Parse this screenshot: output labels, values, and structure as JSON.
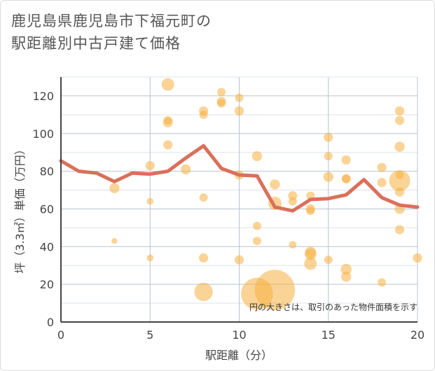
{
  "title": {
    "line1": "鹿児島県鹿児島市下福元町の",
    "line2": "駅距離別中古戸建て価格"
  },
  "colors": {
    "bubble": "#f5b041",
    "line": "#d9705a",
    "grid_major": "#b8c4d0",
    "grid_minor": "#dde3ea",
    "axis": "#444444"
  },
  "chart_data": {
    "type": "scatter",
    "xlabel": "駅距離（分）",
    "ylabel": "坪（3.3㎡）単価（万円）",
    "xlim": [
      0,
      20
    ],
    "ylim": [
      0,
      130
    ],
    "x_ticks": [
      "0",
      "5",
      "10",
      "15",
      "20"
    ],
    "y_ticks": [
      "0",
      "20",
      "40",
      "60",
      "80",
      "100",
      "120"
    ],
    "annotation": "円の大きさは、取引のあった物件面積を示す",
    "trend": [
      {
        "x": 0,
        "y": 85.5
      },
      {
        "x": 1,
        "y": 80
      },
      {
        "x": 2,
        "y": 79
      },
      {
        "x": 3,
        "y": 74.5
      },
      {
        "x": 4,
        "y": 79
      },
      {
        "x": 5,
        "y": 78.5
      },
      {
        "x": 6,
        "y": 80
      },
      {
        "x": 7,
        "y": 87
      },
      {
        "x": 8,
        "y": 93.5
      },
      {
        "x": 9,
        "y": 81.5
      },
      {
        "x": 10,
        "y": 78
      },
      {
        "x": 11,
        "y": 77.5
      },
      {
        "x": 12,
        "y": 61
      },
      {
        "x": 13,
        "y": 59
      },
      {
        "x": 14,
        "y": 65
      },
      {
        "x": 15,
        "y": 65.5
      },
      {
        "x": 16,
        "y": 67.5
      },
      {
        "x": 17,
        "y": 75.5
      },
      {
        "x": 18,
        "y": 66
      },
      {
        "x": 19,
        "y": 62
      },
      {
        "x": 20,
        "y": 61
      }
    ],
    "points": [
      {
        "x": 3,
        "y": 71,
        "size": 1.2
      },
      {
        "x": 3,
        "y": 43,
        "size": 0.7
      },
      {
        "x": 5,
        "y": 83,
        "size": 1.1
      },
      {
        "x": 5,
        "y": 64,
        "size": 0.8
      },
      {
        "x": 5,
        "y": 34,
        "size": 0.8
      },
      {
        "x": 6,
        "y": 126,
        "size": 1.5
      },
      {
        "x": 6,
        "y": 107,
        "size": 1.0
      },
      {
        "x": 6,
        "y": 106,
        "size": 1.2
      },
      {
        "x": 6,
        "y": 94,
        "size": 1.1
      },
      {
        "x": 7,
        "y": 81,
        "size": 1.2
      },
      {
        "x": 8,
        "y": 112,
        "size": 1.1
      },
      {
        "x": 8,
        "y": 110,
        "size": 1.0
      },
      {
        "x": 8,
        "y": 66,
        "size": 1.0
      },
      {
        "x": 8,
        "y": 34,
        "size": 1.1
      },
      {
        "x": 8,
        "y": 16,
        "size": 2.2
      },
      {
        "x": 9,
        "y": 122,
        "size": 1.0
      },
      {
        "x": 9,
        "y": 117,
        "size": 1.1
      },
      {
        "x": 9,
        "y": 116,
        "size": 1.0
      },
      {
        "x": 10,
        "y": 119,
        "size": 1.0
      },
      {
        "x": 10,
        "y": 112,
        "size": 1.1
      },
      {
        "x": 10,
        "y": 78,
        "size": 1.1
      },
      {
        "x": 10,
        "y": 33,
        "size": 1.1
      },
      {
        "x": 11,
        "y": 88,
        "size": 1.2
      },
      {
        "x": 11,
        "y": 51,
        "size": 1.0
      },
      {
        "x": 11,
        "y": 43,
        "size": 1.0
      },
      {
        "x": 11,
        "y": 15,
        "size": 3.8
      },
      {
        "x": 12,
        "y": 73,
        "size": 1.2
      },
      {
        "x": 12,
        "y": 63,
        "size": 1.6
      },
      {
        "x": 12,
        "y": 17,
        "size": 4.8
      },
      {
        "x": 13,
        "y": 67,
        "size": 1.1
      },
      {
        "x": 13,
        "y": 64,
        "size": 1.0
      },
      {
        "x": 13,
        "y": 41,
        "size": 0.9
      },
      {
        "x": 14,
        "y": 67,
        "size": 1.0
      },
      {
        "x": 14,
        "y": 60,
        "size": 1.1
      },
      {
        "x": 14,
        "y": 59,
        "size": 1.0
      },
      {
        "x": 14,
        "y": 37,
        "size": 1.3
      },
      {
        "x": 14,
        "y": 36,
        "size": 1.4
      },
      {
        "x": 14,
        "y": 31,
        "size": 1.5
      },
      {
        "x": 15,
        "y": 98,
        "size": 1.1
      },
      {
        "x": 15,
        "y": 88,
        "size": 1.0
      },
      {
        "x": 15,
        "y": 77,
        "size": 1.2
      },
      {
        "x": 15,
        "y": 33,
        "size": 1.0
      },
      {
        "x": 16,
        "y": 86,
        "size": 1.1
      },
      {
        "x": 16,
        "y": 76,
        "size": 1.1
      },
      {
        "x": 16,
        "y": 76,
        "size": 1.0
      },
      {
        "x": 16,
        "y": 28,
        "size": 1.3
      },
      {
        "x": 16,
        "y": 24,
        "size": 1.2
      },
      {
        "x": 18,
        "y": 82,
        "size": 1.1
      },
      {
        "x": 18,
        "y": 74,
        "size": 1.1
      },
      {
        "x": 18,
        "y": 21,
        "size": 1.0
      },
      {
        "x": 19,
        "y": 112,
        "size": 1.1
      },
      {
        "x": 19,
        "y": 107,
        "size": 1.1
      },
      {
        "x": 19,
        "y": 93,
        "size": 1.2
      },
      {
        "x": 19,
        "y": 78,
        "size": 1.0
      },
      {
        "x": 19,
        "y": 75,
        "size": 2.5
      },
      {
        "x": 19,
        "y": 69,
        "size": 1.1
      },
      {
        "x": 19,
        "y": 60,
        "size": 1.2
      },
      {
        "x": 19,
        "y": 49,
        "size": 1.1
      },
      {
        "x": 20,
        "y": 34,
        "size": 1.1
      }
    ]
  }
}
